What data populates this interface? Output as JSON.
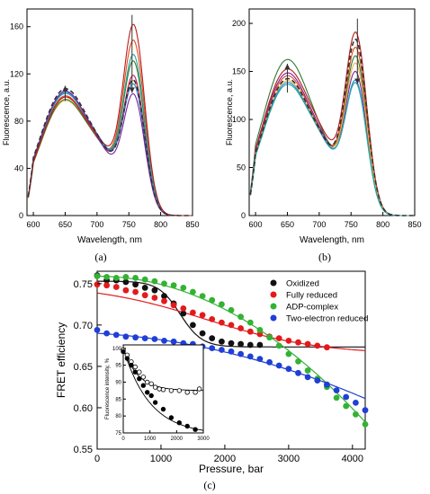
{
  "chart_data": [
    {
      "type": "line",
      "caption": "(a)",
      "xlabel": "Wavelength, nm",
      "ylabel": "Fluorescence, a.u.",
      "xlim": [
        590,
        850
      ],
      "ylim": [
        0,
        175
      ],
      "xticks": [
        600,
        650,
        700,
        750,
        800,
        850
      ],
      "yticks": [
        0,
        40,
        80,
        120,
        160
      ],
      "arrows": [
        {
          "x": 650,
          "from": 97,
          "to": 110
        },
        {
          "x": 755,
          "from": 170,
          "to": 104
        }
      ],
      "series": [
        {
          "color": "#e8b84a",
          "y650": 97,
          "y713": 58,
          "y757": 120,
          "dashed": false
        },
        {
          "color": "#2e7d32",
          "y650": 98,
          "y713": 57,
          "y757": 137,
          "dashed": false
        },
        {
          "color": "#c2185b",
          "y650": 100,
          "y713": 57,
          "y757": 125,
          "dashed": false
        },
        {
          "color": "#e64a19",
          "y650": 101,
          "y713": 58,
          "y757": 155,
          "dashed": false
        },
        {
          "color": "#26a69a",
          "y650": 103,
          "y713": 58,
          "y757": 143,
          "dashed": false
        },
        {
          "color": "#1e88e5",
          "y650": 104,
          "y713": 59,
          "y757": 118,
          "dashed": false
        },
        {
          "color": "#7b1fa2",
          "y650": 105,
          "y713": 56,
          "y757": 110,
          "dashed": false
        },
        {
          "color": "#b71c1c",
          "y650": 100,
          "y713": 60,
          "y757": 168,
          "dashed": false
        },
        {
          "color": "#333333",
          "y650": 107,
          "y713": 58,
          "y757": 122,
          "dashed": true
        }
      ]
    },
    {
      "type": "line",
      "caption": "(b)",
      "xlabel": "Wavelength, nm",
      "ylabel": "Fluorescence, a.u.",
      "xlim": [
        590,
        850
      ],
      "ylim": [
        0,
        215
      ],
      "xticks": [
        600,
        650,
        700,
        750,
        800,
        850
      ],
      "yticks": [
        0,
        50,
        100,
        150,
        200
      ],
      "arrows": [
        {
          "x": 650,
          "from": 128,
          "to": 158
        },
        {
          "x": 760,
          "from": 205,
          "to": 137
        }
      ],
      "series": [
        {
          "color": "#2e7d32",
          "y650": 162,
          "y713": 78,
          "y757": 178,
          "dashed": false
        },
        {
          "color": "#b71c1c",
          "y650": 152,
          "y713": 82,
          "y757": 201,
          "dashed": false
        },
        {
          "color": "#7b1fa2",
          "y650": 148,
          "y713": 77,
          "y757": 160,
          "dashed": false
        },
        {
          "color": "#e64a19",
          "y650": 145,
          "y713": 76,
          "y757": 185,
          "dashed": false
        },
        {
          "color": "#e8b84a",
          "y650": 140,
          "y713": 75,
          "y757": 168,
          "dashed": false
        },
        {
          "color": "#1e88e5",
          "y650": 138,
          "y713": 74,
          "y757": 150,
          "dashed": false
        },
        {
          "color": "#26a69a",
          "y650": 136,
          "y713": 75,
          "y757": 147,
          "dashed": false
        },
        {
          "color": "#333333",
          "y650": 142,
          "y713": 76,
          "y757": 193,
          "dashed": true
        }
      ]
    },
    {
      "type": "scatter",
      "caption": "(c)",
      "xlabel": "Pressure, bar",
      "ylabel": "FRET efficiency",
      "xlim": [
        0,
        4200
      ],
      "ylim": [
        0.55,
        0.765
      ],
      "xticks": [
        0,
        1000,
        2000,
        3000,
        4000
      ],
      "yticks": [
        0.55,
        0.6,
        0.65,
        0.7,
        0.75
      ],
      "legend_position": "top-right",
      "series": [
        {
          "name": "Oxidized",
          "color": "#111111",
          "x": [
            0,
            150,
            300,
            450,
            600,
            750,
            900,
            1050,
            1200,
            1350,
            1500,
            1650,
            1800,
            1950,
            2100,
            2250,
            2400,
            2550
          ],
          "y": [
            0.76,
            0.754,
            0.754,
            0.752,
            0.749,
            0.745,
            0.742,
            0.735,
            0.726,
            0.714,
            0.7,
            0.69,
            0.684,
            0.68,
            0.678,
            0.677,
            0.676,
            0.676
          ],
          "fit": [
            0.753,
            0.6735,
            1300,
            170
          ]
        },
        {
          "name": "Fully reduced",
          "color": "#e31a1c",
          "x": [
            0,
            150,
            300,
            450,
            600,
            750,
            900,
            1050,
            1200,
            1350,
            1500,
            1650,
            1800,
            1950,
            2100,
            2250,
            2400,
            2550,
            2700,
            2850,
            3000,
            3150,
            3300,
            3450,
            3600
          ],
          "y": [
            0.749,
            0.748,
            0.746,
            0.742,
            0.74,
            0.736,
            0.733,
            0.729,
            0.724,
            0.72,
            0.715,
            0.712,
            0.707,
            0.703,
            0.7,
            0.696,
            0.692,
            0.689,
            0.686,
            0.684,
            0.681,
            0.679,
            0.677,
            0.675,
            0.673
          ],
          "fit": [
            0.75,
            0.664,
            1700,
            900
          ]
        },
        {
          "name": "ADP-complex",
          "color": "#33b233",
          "x": [
            0,
            150,
            300,
            450,
            600,
            750,
            900,
            1050,
            1200,
            1350,
            1500,
            1650,
            1800,
            1950,
            2100,
            2250,
            2400,
            2550,
            2700,
            2850,
            3000,
            3150,
            3300,
            3450,
            3600,
            3750,
            3900,
            4050,
            4200
          ],
          "y": [
            0.759,
            0.758,
            0.757,
            0.758,
            0.757,
            0.755,
            0.753,
            0.75,
            0.748,
            0.745,
            0.74,
            0.735,
            0.73,
            0.725,
            0.718,
            0.71,
            0.703,
            0.694,
            0.685,
            0.675,
            0.665,
            0.656,
            0.645,
            0.635,
            0.625,
            0.612,
            0.602,
            0.592,
            0.58
          ],
          "fit": "poly",
          "fitpoly": [
            0.759,
            0.0,
            -1e-08
          ]
        },
        {
          "name": "Two-electron reduced",
          "color": "#1f3fd6",
          "x": [
            0,
            150,
            300,
            450,
            600,
            750,
            900,
            1050,
            1200,
            1350,
            1500,
            1650,
            1800,
            1950,
            2100,
            2250,
            2400,
            2550,
            2700,
            2850,
            3000,
            3150,
            3300,
            3450,
            3600,
            3750,
            3900,
            4050,
            4200
          ],
          "y": [
            0.694,
            0.69,
            0.688,
            0.686,
            0.685,
            0.684,
            0.683,
            0.681,
            0.68,
            0.678,
            0.677,
            0.674,
            0.672,
            0.67,
            0.668,
            0.665,
            0.662,
            0.659,
            0.655,
            0.651,
            0.647,
            0.642,
            0.637,
            0.633,
            0.628,
            0.621,
            0.613,
            0.606,
            0.597
          ],
          "fit": "poly",
          "fitpoly": [
            0.69,
            -4.5e-06,
            -3.4e-09
          ]
        }
      ],
      "inset": {
        "ylabel": "Fluorescence intensity, %",
        "xlim": [
          0,
          3000
        ],
        "ylim": [
          75,
          101
        ],
        "xticks": [
          0,
          1000,
          2000,
          3000
        ],
        "yticks": [
          75,
          80,
          85,
          90,
          95,
          100
        ],
        "series": [
          {
            "marker": "open",
            "color": "#000000",
            "x": [
              0,
              150,
              300,
              450,
              600,
              750,
              900,
              1050,
              1200,
              1350,
              1500,
              1800,
              2100,
              2400,
              2700,
              2850
            ],
            "y": [
              99.5,
              98,
              96,
              94.5,
              93,
              91.5,
              90,
              89.5,
              88.5,
              88,
              87.8,
              87.5,
              87.5,
              87,
              87,
              88
            ],
            "fit": [
              100,
              87.5,
              550
            ]
          },
          {
            "marker": "filled",
            "color": "#000000",
            "x": [
              0,
              150,
              300,
              450,
              600,
              750,
              900,
              1050,
              1200,
              1500,
              1800,
              2100,
              2400,
              2700
            ],
            "y": [
              99,
              97,
              95,
              93,
              91,
              89,
              87,
              86,
              84,
              82,
              79.5,
              78,
              77,
              76
            ],
            "fit": [
              100,
              74.5,
              1000
            ]
          }
        ]
      }
    }
  ]
}
